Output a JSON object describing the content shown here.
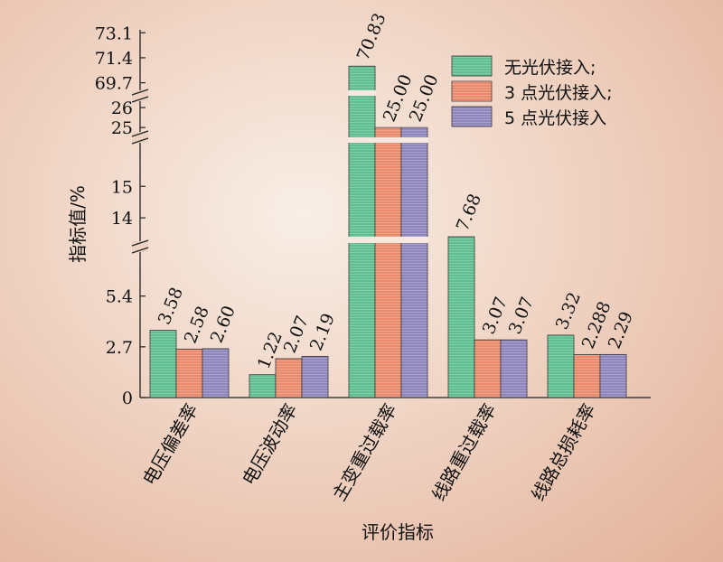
{
  "chart_data": {
    "type": "bar",
    "xlabel": "评价指标",
    "ylabel": "指标值/%",
    "categories": [
      "电压偏差率",
      "电压波动率",
      "主变重过载率",
      "线路重过载率",
      "线路总损耗率"
    ],
    "series": [
      {
        "name": "无光伏接入;",
        "color": "#5fbf90",
        "values": [
          3.58,
          1.22,
          70.83,
          7.68,
          3.32
        ],
        "labels": [
          "3.58",
          "1.22",
          "70.83",
          "7.68",
          "3.32"
        ]
      },
      {
        "name": "3 点光伏接入;",
        "color": "#e98b6c",
        "values": [
          2.58,
          2.07,
          25.0,
          3.07,
          2.288
        ],
        "labels": [
          "2.58",
          "2.07",
          "25.00",
          "3.07",
          "2.288"
        ]
      },
      {
        "name": "5 点光伏接入",
        "color": "#8f86be",
        "values": [
          2.6,
          2.19,
          25.0,
          3.07,
          2.29
        ],
        "labels": [
          "2.60",
          "2.19",
          "25.00",
          "3.07",
          "2.29"
        ]
      }
    ],
    "y_ticks": [
      "0",
      "2.7",
      "5.4",
      "14",
      "15",
      "25",
      "26",
      "69.7",
      "71.4",
      "73.1"
    ],
    "axis_breaks": [
      "between 5.4 and 14",
      "between 15 and 25",
      "between 26 and 69.7"
    ],
    "legend_position": "top-right",
    "grid": false
  }
}
